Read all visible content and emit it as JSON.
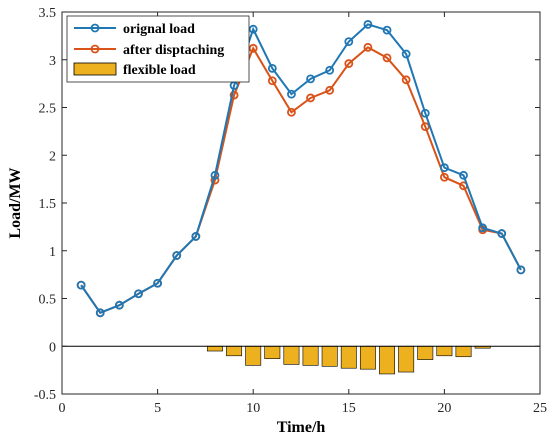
{
  "chart_data": {
    "type": "line",
    "xlabel": "Time/h",
    "ylabel": "Load/MW",
    "xlim": [
      0,
      25
    ],
    "ylim": [
      -0.5,
      3.5
    ],
    "xticks": [
      0,
      5,
      10,
      15,
      20,
      25
    ],
    "yticks": [
      -0.5,
      0,
      0.5,
      1,
      1.5,
      2,
      2.5,
      3,
      3.5
    ],
    "ytick_labels": [
      "-0.5",
      "0",
      "0.5",
      "1",
      "1.5",
      "2",
      "2.5",
      "3",
      "3.5"
    ],
    "x": [
      1,
      2,
      3,
      4,
      5,
      6,
      7,
      8,
      9,
      10,
      11,
      12,
      13,
      14,
      15,
      16,
      17,
      18,
      19,
      20,
      21,
      22,
      23,
      24
    ],
    "series": [
      {
        "name": "orignal load",
        "kind": "line",
        "color": "#1f77b4",
        "values": [
          0.64,
          0.35,
          0.43,
          0.55,
          0.66,
          0.95,
          1.15,
          1.79,
          2.73,
          3.32,
          2.91,
          2.64,
          2.8,
          2.89,
          3.19,
          3.37,
          3.31,
          3.06,
          2.44,
          1.87,
          1.79,
          1.24,
          1.18,
          0.8
        ]
      },
      {
        "name": "after disptaching",
        "kind": "line",
        "color": "#d95319",
        "values": [
          0.64,
          0.35,
          0.43,
          0.55,
          0.66,
          0.95,
          1.15,
          1.74,
          2.63,
          3.12,
          2.78,
          2.45,
          2.6,
          2.68,
          2.96,
          3.13,
          3.02,
          2.79,
          2.3,
          1.77,
          1.68,
          1.22,
          1.18,
          0.8
        ]
      },
      {
        "name": "flexible load",
        "kind": "bar",
        "color": "#edb120",
        "values": [
          0,
          0,
          0,
          0,
          0,
          0,
          0,
          -0.05,
          -0.1,
          -0.2,
          -0.13,
          -0.19,
          -0.2,
          -0.21,
          -0.23,
          -0.24,
          -0.29,
          -0.27,
          -0.14,
          -0.1,
          -0.11,
          -0.02,
          0,
          0
        ]
      }
    ],
    "legend_position": "top-left",
    "grid": false
  }
}
